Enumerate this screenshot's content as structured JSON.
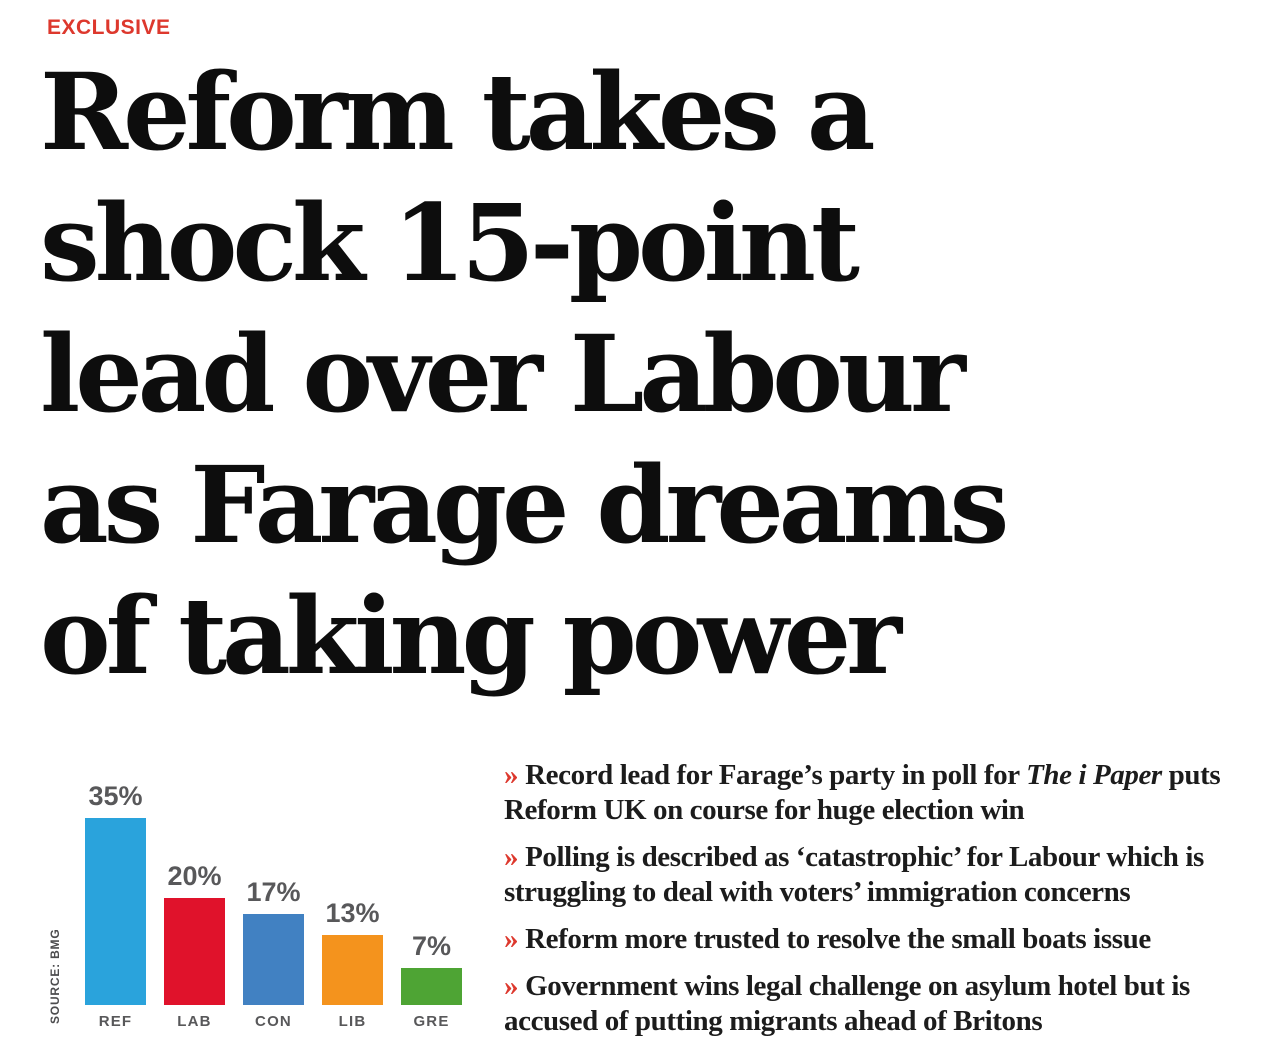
{
  "kicker": "EXCLUSIVE",
  "headline": {
    "lines": [
      "Reform takes a",
      "shock 15-point",
      "lead over Labour",
      "as Farage dreams",
      "of taking power"
    ]
  },
  "chart_data": {
    "type": "bar",
    "categories": [
      "REF",
      "LAB",
      "CON",
      "LIB",
      "GRE"
    ],
    "values": [
      35,
      20,
      17,
      13,
      7
    ],
    "value_labels": [
      "35%",
      "20%",
      "17%",
      "13%",
      "7%"
    ],
    "bar_colors": [
      "#2aa3dc",
      "#e0122b",
      "#4181c2",
      "#f4931d",
      "#4ea434"
    ],
    "source": "SOURCE: BMG",
    "title": "",
    "xlabel": "",
    "ylabel": "",
    "ylim": [
      0,
      38
    ],
    "grid": false,
    "legend": "none"
  },
  "bullets": {
    "marker": "»",
    "items": [
      {
        "segments": [
          {
            "t": "Record lead for Farage’s party in poll for "
          },
          {
            "t": "The i Paper",
            "i": true
          },
          {
            "t": " puts Reform UK on course for huge election win"
          }
        ]
      },
      {
        "segments": [
          {
            "t": "Polling is described as ‘catastrophic’ for Labour which is struggling to deal with voters’ immigration concerns"
          }
        ]
      },
      {
        "segments": [
          {
            "t": "Reform more trusted to resolve the small boats issue"
          }
        ]
      },
      {
        "segments": [
          {
            "t": "Government wins legal challenge on asylum hotel but is accused of putting migrants ahead of Britons"
          }
        ]
      }
    ]
  },
  "colors": {
    "accent_red": "#dd382d",
    "headline_black": "#0d0d0d",
    "label_gray": "#58585a"
  }
}
